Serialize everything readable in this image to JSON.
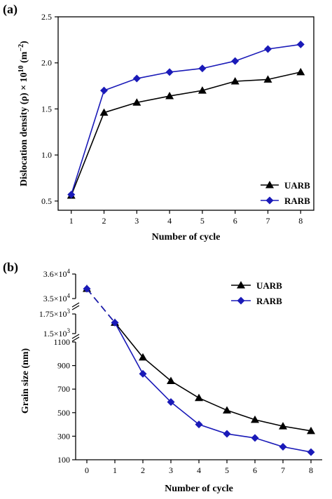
{
  "chart_data": [
    {
      "panel": "(a)",
      "type": "line",
      "title": "",
      "xlabel": "Number of cycle",
      "ylabel_prefix": "Dislocation density (ρ) × 10",
      "ylabel_exp1": "10",
      "ylabel_unit": " (m",
      "ylabel_exp2": "−2",
      "ylabel_close": ")",
      "xlim": [
        0.6,
        8.4
      ],
      "ylim": [
        0.4,
        2.5
      ],
      "xticks": [
        1,
        2,
        3,
        4,
        5,
        6,
        7,
        8
      ],
      "yticks": [
        {
          "v": 0.5,
          "label": "0.5"
        },
        {
          "v": 1.0,
          "label": "1.0"
        },
        {
          "v": 1.5,
          "label": "1.5"
        },
        {
          "v": 2.0,
          "label": "2.0"
        },
        {
          "v": 2.5,
          "label": "2.5"
        }
      ],
      "x": [
        1,
        2,
        3,
        4,
        5,
        6,
        7,
        8
      ],
      "legend_position": "bottom-right",
      "series": [
        {
          "name": "UARB",
          "marker": "triangle",
          "color": "#000000",
          "values": [
            0.56,
            1.46,
            1.57,
            1.64,
            1.7,
            1.8,
            1.82,
            1.9
          ]
        },
        {
          "name": "RARB",
          "marker": "diamond",
          "color": "#1a1ab8",
          "values": [
            0.57,
            1.7,
            1.83,
            1.9,
            1.94,
            2.02,
            2.15,
            2.2
          ]
        }
      ]
    },
    {
      "panel": "(b)",
      "type": "line",
      "title": "",
      "xlabel": "Number of cycle",
      "ylabel": "Grain size (nm)",
      "xlim": [
        -0.4,
        8.4
      ],
      "y_scale": "broken",
      "y_segments": [
        {
          "min": 100,
          "max": 1100
        },
        {
          "min": 1500,
          "max": 1750
        },
        {
          "min": 35000,
          "max": 36000
        }
      ],
      "xticks": [
        0,
        1,
        2,
        3,
        4,
        5,
        6,
        7,
        8
      ],
      "yticks": [
        {
          "v": 100,
          "label": "100"
        },
        {
          "v": 300,
          "label": "300"
        },
        {
          "v": 500,
          "label": "500"
        },
        {
          "v": 700,
          "label": "700"
        },
        {
          "v": 900,
          "label": "900"
        },
        {
          "v": 1100,
          "label": "1100"
        },
        {
          "v": 1500,
          "label": "1.5×10",
          "exp": "3"
        },
        {
          "v": 1750,
          "label": "1.75×10",
          "exp": "3"
        },
        {
          "v": 35000,
          "label": "3.5×10",
          "exp": "4"
        },
        {
          "v": 36000,
          "label": "3.6×10",
          "exp": "4"
        }
      ],
      "x": [
        0,
        1,
        2,
        3,
        4,
        5,
        6,
        7,
        8
      ],
      "legend_position": "top-right",
      "series": [
        {
          "name": "UARB",
          "marker": "triangle",
          "color": "#000000",
          "values": [
            35400,
            1640,
            970,
            770,
            625,
            520,
            440,
            385,
            345
          ]
        },
        {
          "name": "RARB",
          "marker": "diamond",
          "color": "#1a1ab8",
          "values": [
            35400,
            1640,
            830,
            590,
            400,
            320,
            285,
            210,
            165
          ]
        }
      ]
    }
  ]
}
